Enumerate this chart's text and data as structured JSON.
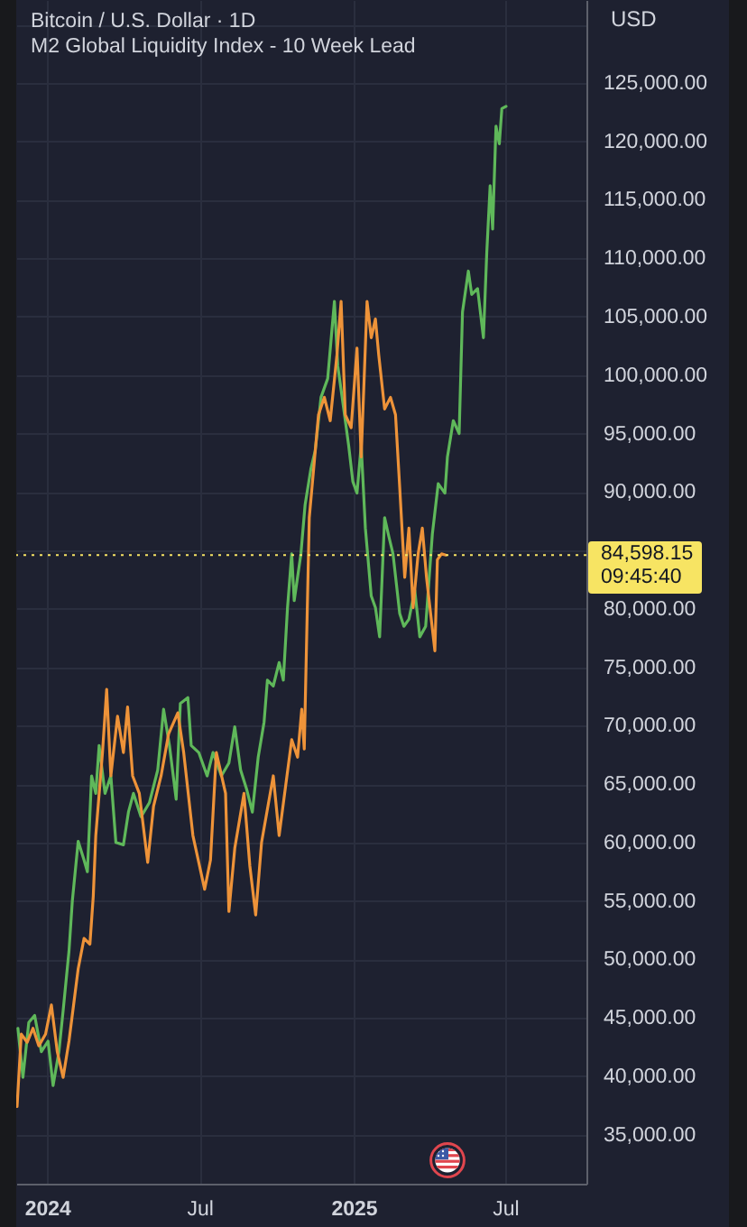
{
  "chart_data": {
    "type": "line",
    "title": "Bitcoin / U.S. Dollar · 1D",
    "subtitle": "M2 Global Liquidity Index - 10 Week Lead",
    "ylabel": "USD",
    "annotations": [
      "09:45:40"
    ],
    "xlim": [
      "2023-11-25",
      "2025-10-06"
    ],
    "xticks": [
      {
        "value": "2024-01-01",
        "label": "2024"
      },
      {
        "value": "2024-07-01",
        "label": "Jul"
      },
      {
        "value": "2025-01-01",
        "label": "2025"
      },
      {
        "value": "2025-07-01",
        "label": "Jul"
      }
    ],
    "ylim": [
      30800,
      132100
    ],
    "yticks": [
      {
        "value": 35000,
        "label": "35,000.00"
      },
      {
        "value": 40000,
        "label": "40,000.00"
      },
      {
        "value": 45000,
        "label": "45,000.00"
      },
      {
        "value": 50000,
        "label": "50,000.00"
      },
      {
        "value": 55000,
        "label": "55,000.00"
      },
      {
        "value": 60000,
        "label": "60,000.00"
      },
      {
        "value": 65000,
        "label": "65,000.00"
      },
      {
        "value": 70000,
        "label": "70,000.00"
      },
      {
        "value": 75000,
        "label": "75,000.00"
      },
      {
        "value": 80000,
        "label": "80,000.00"
      },
      {
        "value": 85000,
        "label": null
      },
      {
        "value": 90000,
        "label": "90,000.00"
      },
      {
        "value": 95000,
        "label": "95,000.00"
      },
      {
        "value": 100000,
        "label": "100,000.00"
      },
      {
        "value": 105000,
        "label": "105,000.00"
      },
      {
        "value": 110000,
        "label": "110,000.00"
      },
      {
        "value": 115000,
        "label": "115,000.00"
      },
      {
        "value": 120000,
        "label": "120,000.00"
      },
      {
        "value": 125000,
        "label": "125,000.00"
      },
      {
        "value": 130000,
        "label": null
      }
    ],
    "grid": true,
    "ref_lines": [
      {
        "axis": "y",
        "value": 84598.15,
        "label": "84,598.15",
        "color": "#f7e463",
        "line_style": "dotted"
      }
    ],
    "series": [
      {
        "color": "#5fb85a",
        "x": [
          "2023-11-27",
          "2023-12-03",
          "2023-12-10",
          "2023-12-17",
          "2023-12-25",
          "2024-01-02",
          "2024-01-08",
          "2024-01-15",
          "2024-01-20",
          "2024-01-27",
          "2024-01-31",
          "2024-02-07",
          "2024-02-14",
          "2024-02-18",
          "2024-02-23",
          "2024-02-28",
          "2024-03-03",
          "2024-03-10",
          "2024-03-17",
          "2024-03-23",
          "2024-04-01",
          "2024-04-07",
          "2024-04-13",
          "2024-04-22",
          "2024-05-02",
          "2024-05-12",
          "2024-05-19",
          "2024-05-26",
          "2024-06-03",
          "2024-06-08",
          "2024-06-17",
          "2024-06-21",
          "2024-06-30",
          "2024-07-10",
          "2024-07-17",
          "2024-07-27",
          "2024-08-05",
          "2024-08-12",
          "2024-08-19",
          "2024-08-26",
          "2024-09-02",
          "2024-09-09",
          "2024-09-16",
          "2024-09-20",
          "2024-09-27",
          "2024-10-04",
          "2024-10-09",
          "2024-10-14",
          "2024-10-19",
          "2024-10-22",
          "2024-10-30",
          "2024-11-04",
          "2024-11-11",
          "2024-11-16",
          "2024-11-23",
          "2024-12-01",
          "2024-12-09",
          "2024-12-13",
          "2024-12-19",
          "2024-12-26",
          "2024-12-31",
          "2025-01-05",
          "2025-01-10",
          "2025-01-15",
          "2025-01-22",
          "2025-01-27",
          "2025-02-01",
          "2025-02-07",
          "2025-02-12",
          "2025-02-17",
          "2025-02-25",
          "2025-03-02",
          "2025-03-08",
          "2025-03-15",
          "2025-03-21",
          "2025-03-28",
          "2025-04-05",
          "2025-04-12",
          "2025-04-20",
          "2025-04-23",
          "2025-04-30",
          "2025-05-07",
          "2025-05-11",
          "2025-05-18",
          "2025-05-22",
          "2025-05-29",
          "2025-06-05",
          "2025-06-09",
          "2025-06-13",
          "2025-06-16",
          "2025-06-20",
          "2025-06-24",
          "2025-06-27",
          "2025-07-02"
        ],
        "values": [
          44100,
          39900,
          44600,
          45200,
          42100,
          43000,
          39200,
          42100,
          45600,
          50700,
          55000,
          60100,
          58500,
          57500,
          65700,
          64200,
          68300,
          64200,
          65700,
          60000,
          59800,
          62600,
          64200,
          62200,
          63400,
          66200,
          71400,
          68300,
          63700,
          71900,
          72400,
          68300,
          67700,
          65700,
          67700,
          65700,
          66800,
          69900,
          66200,
          64600,
          62600,
          67300,
          70300,
          73900,
          73400,
          75400,
          73900,
          80100,
          84700,
          80700,
          84700,
          88900,
          92000,
          93500,
          98100,
          99700,
          106300,
          100800,
          97700,
          94000,
          90900,
          89900,
          94000,
          86900,
          81100,
          80100,
          77600,
          87800,
          86200,
          84700,
          79600,
          78500,
          79100,
          81600,
          77600,
          78500,
          86400,
          90700,
          89900,
          93000,
          96100,
          95000,
          105400,
          108900,
          106900,
          107400,
          103200,
          110500,
          116200,
          112500,
          121300,
          119800,
          122800,
          123000
        ]
      },
      {
        "color": "#ee9339",
        "x": [
          "2023-11-26",
          "2023-12-01",
          "2023-12-08",
          "2023-12-15",
          "2023-12-22",
          "2023-12-30",
          "2024-01-06",
          "2024-01-13",
          "2024-01-20",
          "2024-01-27",
          "2024-02-07",
          "2024-02-14",
          "2024-02-21",
          "2024-02-25",
          "2024-02-28",
          "2024-03-07",
          "2024-03-12",
          "2024-03-17",
          "2024-03-25",
          "2024-04-01",
          "2024-04-06",
          "2024-04-12",
          "2024-04-20",
          "2024-04-30",
          "2024-05-07",
          "2024-05-16",
          "2024-05-25",
          "2024-06-05",
          "2024-06-12",
          "2024-06-23",
          "2024-07-07",
          "2024-07-14",
          "2024-07-21",
          "2024-08-01",
          "2024-08-05",
          "2024-08-12",
          "2024-08-23",
          "2024-08-30",
          "2024-09-06",
          "2024-09-13",
          "2024-09-27",
          "2024-10-04",
          "2024-10-19",
          "2024-10-26",
          "2024-10-31",
          "2024-11-03",
          "2024-11-09",
          "2024-11-20",
          "2024-11-27",
          "2024-12-04",
          "2024-12-12",
          "2024-12-17",
          "2024-12-22",
          "2024-12-29",
          "2025-01-05",
          "2025-01-10",
          "2025-01-17",
          "2025-01-22",
          "2025-01-27",
          "2025-01-31",
          "2025-02-07",
          "2025-02-14",
          "2025-02-20",
          "2025-02-25",
          "2025-03-03",
          "2025-03-08",
          "2025-03-13",
          "2025-03-19",
          "2025-03-24",
          "2025-03-29",
          "2025-04-08",
          "2025-04-11",
          "2025-04-16",
          "2025-04-21"
        ],
        "values": [
          37400,
          43600,
          42900,
          44100,
          42600,
          43600,
          46100,
          42100,
          39900,
          43000,
          49200,
          51800,
          51300,
          55400,
          60600,
          67700,
          73100,
          65700,
          70800,
          67700,
          71600,
          65700,
          64200,
          58300,
          63100,
          65700,
          69300,
          71100,
          67700,
          60600,
          56000,
          58500,
          67700,
          64200,
          54100,
          59500,
          64200,
          58000,
          53800,
          60000,
          65700,
          60600,
          68800,
          67300,
          71400,
          68000,
          87800,
          96600,
          98100,
          96100,
          101700,
          106300,
          96600,
          95500,
          102300,
          93000,
          106300,
          103200,
          104800,
          101700,
          97100,
          98100,
          96600,
          90400,
          82700,
          86900,
          80100,
          84700,
          86900,
          82700,
          76400,
          84200,
          84700,
          84600
        ]
      }
    ]
  }
}
